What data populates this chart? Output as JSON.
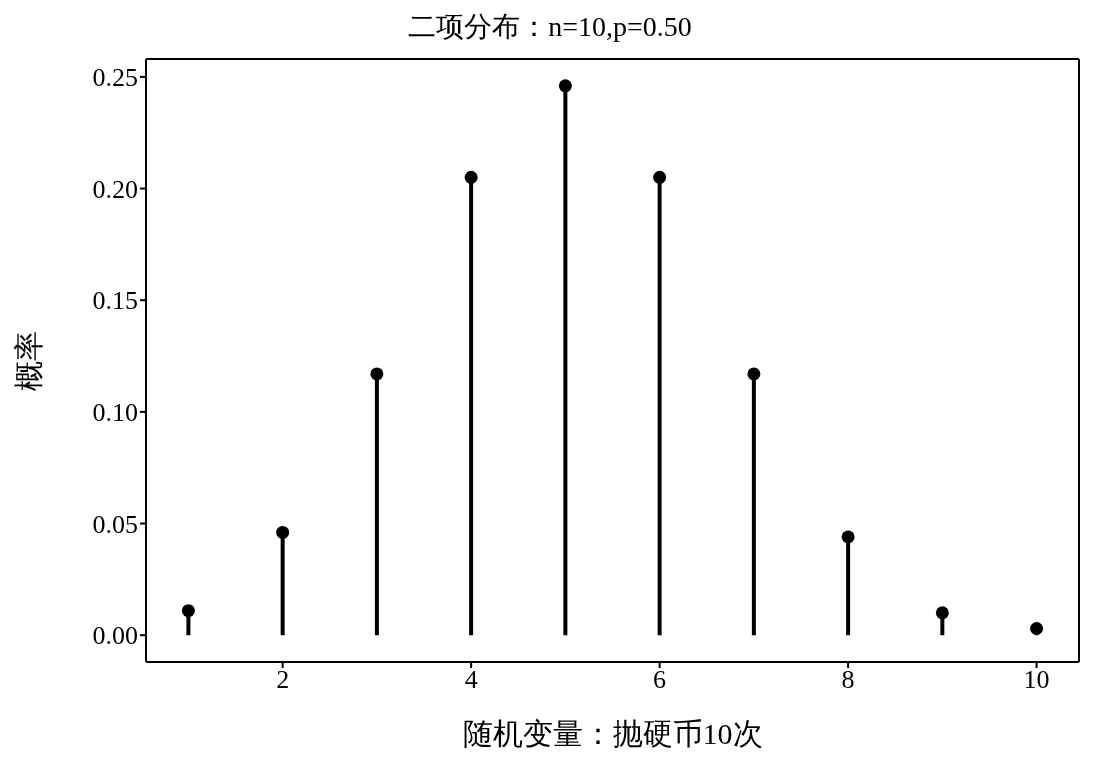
{
  "chart_data": {
    "type": "lollipop",
    "title": "二项分布：n=10,p=0.50",
    "xlabel": "随机变量：抛硬币10次",
    "ylabel": "概率",
    "x": [
      1,
      2,
      3,
      4,
      5,
      6,
      7,
      8,
      9,
      10
    ],
    "values": [
      0.011,
      0.046,
      0.117,
      0.205,
      0.246,
      0.205,
      0.117,
      0.044,
      0.01,
      0.003
    ],
    "color": "#000000",
    "marker": "circle",
    "xlim": [
      0.55,
      10.45
    ],
    "xticks": [
      2,
      4,
      6,
      8,
      10
    ],
    "ylim": [
      -0.012,
      0.258
    ],
    "yticks": [
      {
        "value": 0,
        "label": "0.00"
      },
      {
        "value": 0.05,
        "label": "0.05"
      },
      {
        "value": 0.1,
        "label": "0.10"
      },
      {
        "value": 0.15,
        "label": "0.15"
      },
      {
        "value": 0.2,
        "label": "0.20"
      },
      {
        "value": 0.25,
        "label": "0.25"
      }
    ]
  }
}
